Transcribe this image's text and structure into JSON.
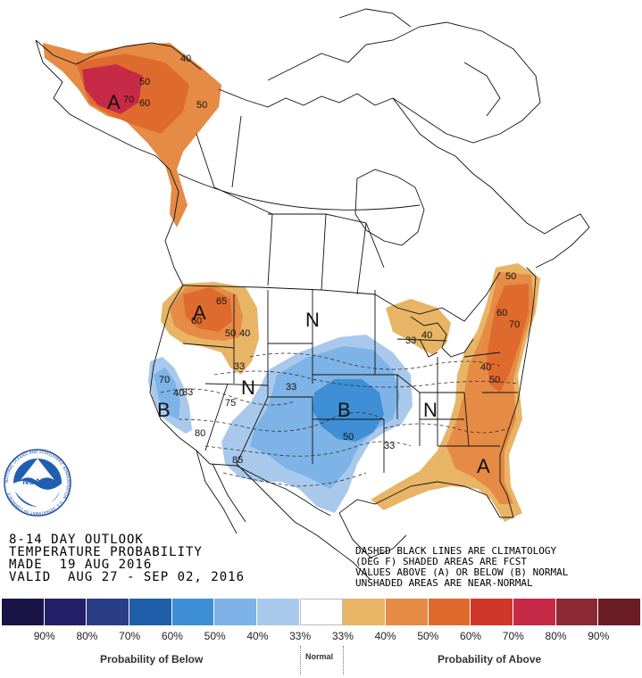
{
  "outlook": {
    "lines": [
      "8-14 DAY OUTLOOK",
      "TEMPERATURE PROBABILITY",
      "MADE  19 AUG 2016",
      "VALID  AUG 27 - SEP 02, 2016"
    ]
  },
  "note": {
    "lines": [
      "DASHED BLACK LINES ARE CLIMATOLOGY",
      "(DEG F) SHADED AREAS ARE FCST",
      "VALUES ABOVE (A) OR BELOW (B) NORMAL",
      "UNSHADED AREAS ARE NEAR-NORMAL"
    ]
  },
  "logo": {
    "text": "NOARA",
    "ring_text": "NATIONAL OCEANIC AND ATMOSPHERIC ADMINISTRATION · U.S. DEPARTMENT OF COMMERCE"
  },
  "map_letters": {
    "alaska_a": "A",
    "northwest_a": "A",
    "west_coast_b": "B",
    "plains_b": "B",
    "nevada_n": "N",
    "northern_plains_n": "N",
    "ohio_n": "N",
    "southeast_a": "A"
  },
  "contour_labels": {
    "alaska_70": "70",
    "alaska_60": "60",
    "alaska_50": "50",
    "yukon_50": "50",
    "yukon_40": "40",
    "nw_60": "60",
    "nw_65": "65",
    "nw_50": "50",
    "nw_40": "40",
    "nw_33": "33",
    "ca_70": "70",
    "ca_40": "40",
    "ca_33": "33",
    "nev_75": "75",
    "nev_80": "80",
    "az_85": "85",
    "plains_33": "33",
    "plains_50": "50",
    "south_33": "33",
    "lakes_33": "33",
    "lakes_40": "40",
    "ne_50": "50",
    "ne_60": "60",
    "ne_70": "70",
    "ne_40": "40",
    "ne_50b": "50"
  },
  "legend": {
    "colors": [
      "#1a1446",
      "#241f66",
      "#2a3d87",
      "#1f5ea8",
      "#3e8fd6",
      "#7db3e6",
      "#a9c9ec",
      "#ffffff",
      "#e8b466",
      "#e58b45",
      "#df6a2e",
      "#d0372b",
      "#c72a47",
      "#8b2a32",
      "#6b1d24"
    ],
    "ticks": [
      "90%",
      "80%",
      "70%",
      "60%",
      "50%",
      "40%",
      "33%",
      "33%",
      "40%",
      "50%",
      "60%",
      "70%",
      "80%",
      "90%"
    ],
    "below_label": "Probability of Below",
    "normal_label": "Normal",
    "above_label": "Probability of Above"
  },
  "colors": {
    "above_40": "#e8b466",
    "above_50": "#e58b45",
    "above_60": "#df6a2e",
    "above_70": "#c72a47",
    "below_33": "#a9c9ec",
    "below_40": "#7db3e6",
    "below_50": "#3e8fd6"
  }
}
